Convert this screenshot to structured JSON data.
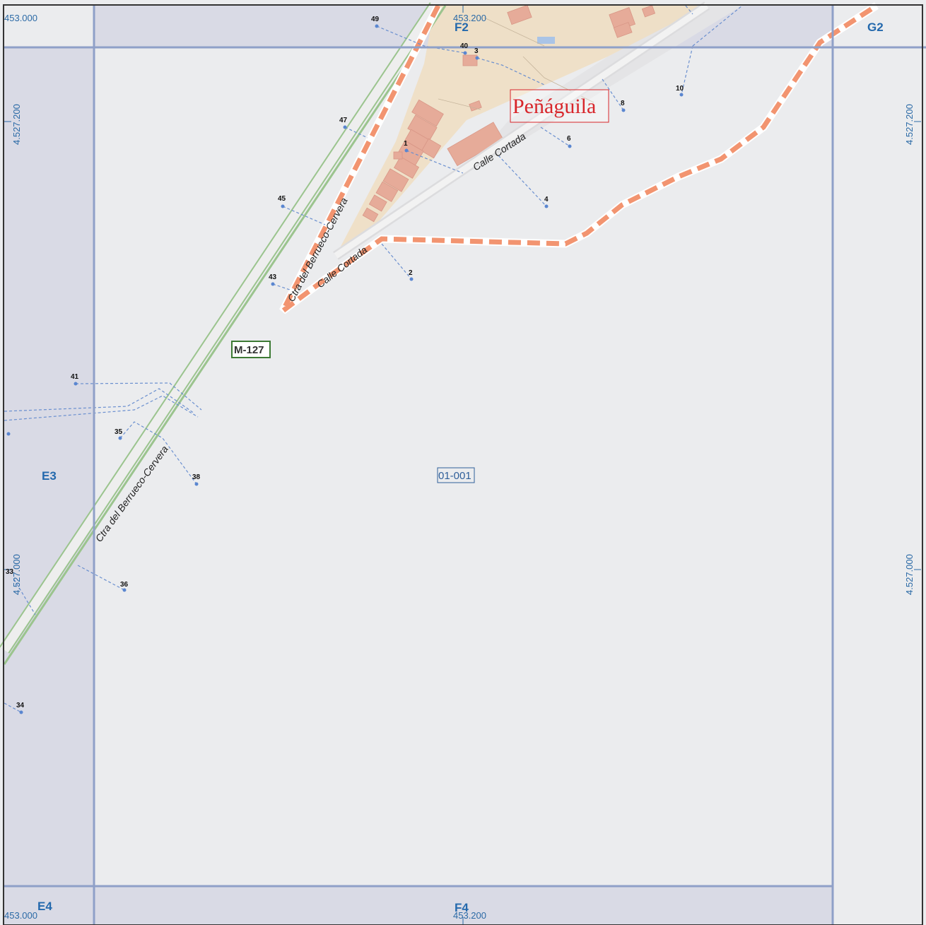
{
  "map": {
    "town_name": "Peñáguila",
    "road_number": "M-127",
    "parcel_code": "01-001",
    "streets": {
      "main_road_north": "Ctra del Berrueco-Cervera",
      "main_road_south": "Ctra del Berrueco-Cervera",
      "calle_cortada_north": "Calle Cortada",
      "calle_cortada_south": "Calle Cortada"
    },
    "grid_sheets": {
      "f2": "F2",
      "g2": "G2",
      "e3": "E3",
      "e4": "E4",
      "f4": "F4"
    },
    "coordinates": {
      "x_453000_top": "453.000",
      "x_453200_top": "453.200",
      "x_453000_bottom": "453.000",
      "x_453200_bottom": "453.200",
      "y_4527200_left": "4.527.200",
      "y_4527200_right": "4.527.200",
      "y_4527000_left": "4.527.000",
      "y_4527000_right": "4.527.000"
    },
    "address_points": {
      "n1": "1",
      "n2": "2",
      "n3": "3",
      "n4": "4",
      "n6": "6",
      "n8": "8",
      "n10": "10",
      "n33": "33",
      "n34": "34",
      "n35": "35",
      "n36": "36",
      "n38": "38",
      "n40": "40",
      "n41": "41",
      "n43": "43",
      "n45": "45",
      "n47": "47",
      "n49": "49"
    },
    "colors": {
      "background": "#ebecee",
      "adjacent_sheet": "#d9dae5",
      "grid_line": "#8fa0c8",
      "urban_area": "#f0dfc3",
      "building": "#e6ab99",
      "road_casing": "#9bc48e",
      "path_dashed": "#f29470",
      "address_leader": "#6a8fcf",
      "town_label": "#d8262b",
      "road_badge": "#3d7a34"
    }
  }
}
